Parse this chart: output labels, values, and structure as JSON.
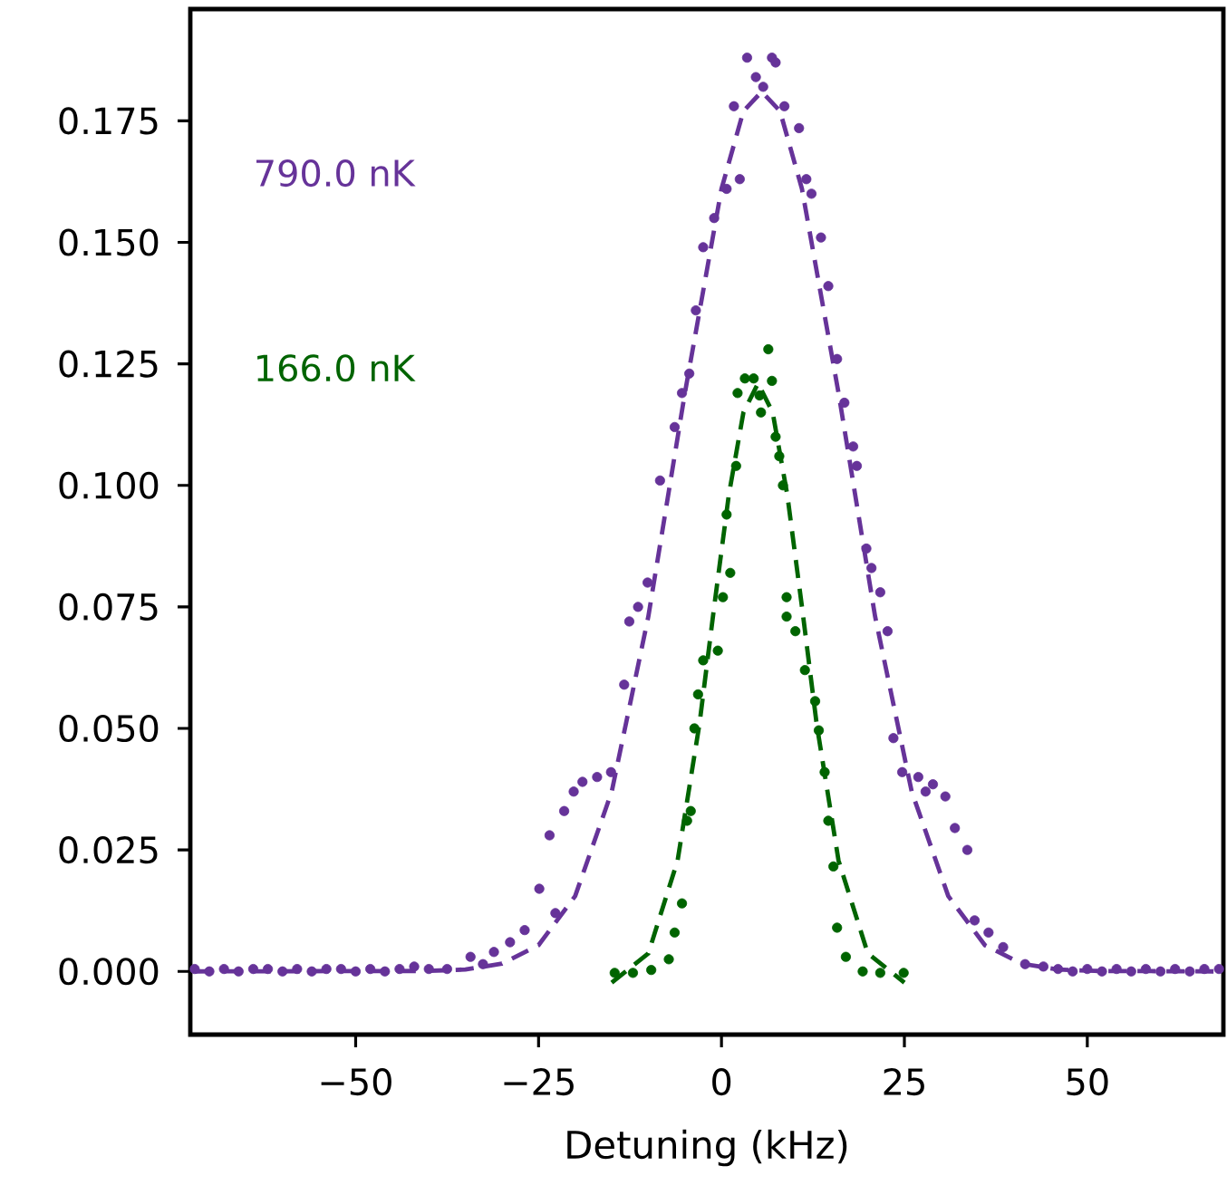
{
  "chart_data": {
    "type": "scatter",
    "xlabel": "Detuning (kHz)",
    "xlim": [
      -72.6,
      68.6
    ],
    "ylim": [
      -0.013,
      0.198
    ],
    "xticks": [
      {
        "value": -50,
        "label": "−50"
      },
      {
        "value": -25,
        "label": "−25"
      },
      0,
      25,
      50
    ],
    "yticks": [
      {
        "value": 0,
        "label": "0.000"
      },
      {
        "value": 0.025,
        "label": "0.025"
      },
      {
        "value": 0.05,
        "label": "0.050"
      },
      {
        "value": 0.075,
        "label": "0.075"
      },
      {
        "value": 0.1,
        "label": "0.100"
      },
      {
        "value": 0.125,
        "label": "0.125"
      },
      {
        "value": 0.15,
        "label": "0.150"
      },
      {
        "value": 0.175,
        "label": "0.175"
      }
    ],
    "series": [
      {
        "name": "790.0 nK",
        "type": "scatter",
        "marker": "circle",
        "color": "#663399",
        "x": [
          -72,
          -70,
          -68,
          -66,
          -64,
          -62,
          -60,
          -58,
          -56,
          -54,
          -52,
          -50,
          -48,
          -46,
          -44,
          -42,
          -40,
          -37.5,
          -34.3,
          -32.6,
          -31.1,
          -28.9,
          -26.9,
          -24.9,
          -22.7,
          -23.5,
          -21.5,
          -20.2,
          -19.0,
          -17.0,
          -15.1,
          -13.3,
          -12.6,
          -11.4,
          -10.1,
          -8.4,
          -6.4,
          -5.4,
          -4.4,
          -3.5,
          -2.5,
          -1.0,
          0.7,
          1.7,
          2.5,
          3.5,
          4.7,
          5.7,
          6.9,
          7.4,
          8.6,
          10.6,
          11.6,
          12.3,
          13.6,
          14.6,
          15.8,
          16.8,
          18.0,
          18.5,
          19.8,
          20.5,
          21.7,
          22.7,
          23.5,
          24.7,
          26.9,
          27.9,
          28.9,
          30.6,
          31.9,
          33.6,
          34.6,
          36.5,
          38.5,
          41.5,
          44,
          46,
          48,
          50,
          52,
          54,
          56,
          58,
          60,
          62,
          64,
          66,
          68
        ],
        "values": [
          0.0005,
          0,
          0.0005,
          0,
          0.0005,
          0.0005,
          0,
          0.0005,
          0,
          0.0005,
          0.0005,
          0,
          0.0005,
          0,
          0.0005,
          0.001,
          0.0005,
          0.0005,
          0.003,
          0.0015,
          0.004,
          0.006,
          0.0085,
          0.017,
          0.012,
          0.028,
          0.033,
          0.037,
          0.039,
          0.04,
          0.041,
          0.059,
          0.072,
          0.075,
          0.08,
          0.101,
          0.112,
          0.119,
          0.123,
          0.136,
          0.149,
          0.155,
          0.161,
          0.178,
          0.163,
          0.188,
          0.184,
          0.182,
          0.188,
          0.187,
          0.178,
          0.1735,
          0.163,
          0.16,
          0.151,
          0.141,
          0.126,
          0.117,
          0.108,
          0.104,
          0.087,
          0.083,
          0.078,
          0.07,
          0.048,
          0.041,
          0.04,
          0.037,
          0.0385,
          0.036,
          0.0295,
          0.025,
          0.0105,
          0.008,
          0.005,
          0.0015,
          0.001,
          0.0005,
          0,
          0.0005,
          0,
          0.0005,
          0,
          0.0005,
          0,
          0.0005,
          0,
          0.0005,
          0.0005
        ]
      },
      {
        "type": "line",
        "line_style": "dashed",
        "color": "#663399",
        "x": [
          -72,
          -40,
          -35,
          -30,
          -25,
          -20,
          -15,
          -10,
          -5,
          0,
          3,
          5.5,
          8,
          11,
          16,
          21,
          26,
          31,
          36,
          41,
          46,
          51,
          68
        ],
        "values": [
          0,
          0.0001,
          0.0004,
          0.0016,
          0.0054,
          0.0155,
          0.037,
          0.073,
          0.119,
          0.161,
          0.177,
          0.181,
          0.177,
          0.161,
          0.119,
          0.073,
          0.037,
          0.0155,
          0.0054,
          0.0016,
          0.0004,
          0.0001,
          0
        ]
      },
      {
        "name": "166.0 nK",
        "type": "scatter",
        "marker": "circle",
        "color": "#006400",
        "x": [
          -14.6,
          -12.1,
          -9.6,
          -7.2,
          -6.4,
          -5.4,
          -4.7,
          -4.2,
          -3.7,
          -3.2,
          -2.5,
          -0.5,
          0.2,
          0.7,
          1.2,
          2.0,
          2.2,
          3.2,
          4.4,
          5.2,
          5.4,
          6.4,
          6.9,
          7.4,
          7.9,
          8.4,
          8.9,
          8.9,
          10.1,
          11.4,
          12.8,
          13.3,
          14.1,
          14.6,
          15.3,
          15.8,
          17.0,
          19.3,
          21.7,
          24.9
        ],
        "values": [
          -0.0003,
          -0.0003,
          0.0003,
          0.0025,
          0.008,
          0.014,
          0.031,
          0.033,
          0.05,
          0.057,
          0.064,
          0.066,
          0.077,
          0.094,
          0.082,
          0.104,
          0.119,
          0.122,
          0.122,
          0.1185,
          0.115,
          0.128,
          0.1215,
          0.11,
          0.106,
          0.1,
          0.077,
          0.073,
          0.07,
          0.062,
          0.0556,
          0.0496,
          0.041,
          0.031,
          0.0216,
          0.009,
          0.003,
          0,
          -0.0003,
          -0.0003
        ]
      },
      {
        "type": "line",
        "line_style": "dashed",
        "color": "#006400",
        "x": [
          -15,
          -10,
          -6,
          -3,
          -1,
          1,
          3,
          5,
          7,
          9,
          11,
          13,
          16,
          20,
          25
        ],
        "values": [
          -0.0023,
          0.0037,
          0.0228,
          0.051,
          0.075,
          0.098,
          0.115,
          0.121,
          0.115,
          0.098,
          0.075,
          0.051,
          0.0228,
          0.0037,
          -0.0023
        ]
      }
    ]
  }
}
